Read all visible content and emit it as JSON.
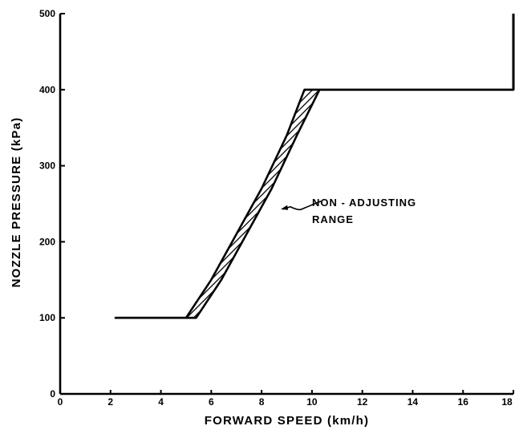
{
  "chart_data": {
    "type": "line",
    "title": "",
    "xlabel": "FORWARD SPEED (km/h)",
    "ylabel": "NOZZLE PRESSURE (kPa)",
    "xlim": [
      0,
      18
    ],
    "ylim": [
      0,
      500
    ],
    "x_ticks": [
      0,
      2,
      4,
      6,
      8,
      10,
      12,
      14,
      16,
      18
    ],
    "x_tick_labels": [
      "0",
      "2",
      "4",
      "6",
      "8",
      "10",
      "12",
      "14",
      "16",
      "18"
    ],
    "y_ticks": [
      0,
      100,
      200,
      300,
      400,
      500
    ],
    "y_tick_labels": [
      "0",
      "100",
      "200",
      "300",
      "400",
      "500"
    ],
    "grid": false,
    "legend": "none",
    "series": [
      {
        "x": [
          2.2,
          5.0,
          6.0,
          7.0,
          8.0,
          9.0,
          9.7,
          18
        ],
        "y": [
          100,
          100,
          150,
          210,
          270,
          340,
          400,
          400
        ]
      },
      {
        "x": [
          2.2,
          5.4,
          6.4,
          7.4,
          8.4,
          9.4,
          10.3,
          18
        ],
        "y": [
          100,
          100,
          150,
          210,
          270,
          340,
          400,
          400
        ]
      }
    ],
    "shaded_band": {
      "between_series": [
        0,
        1
      ],
      "pattern": "hatched"
    },
    "annotations": [
      {
        "text_lines": [
          "NON - ADJUSTING",
          "RANGE"
        ],
        "points_to": [
          8.7,
          245
        ]
      }
    ]
  }
}
